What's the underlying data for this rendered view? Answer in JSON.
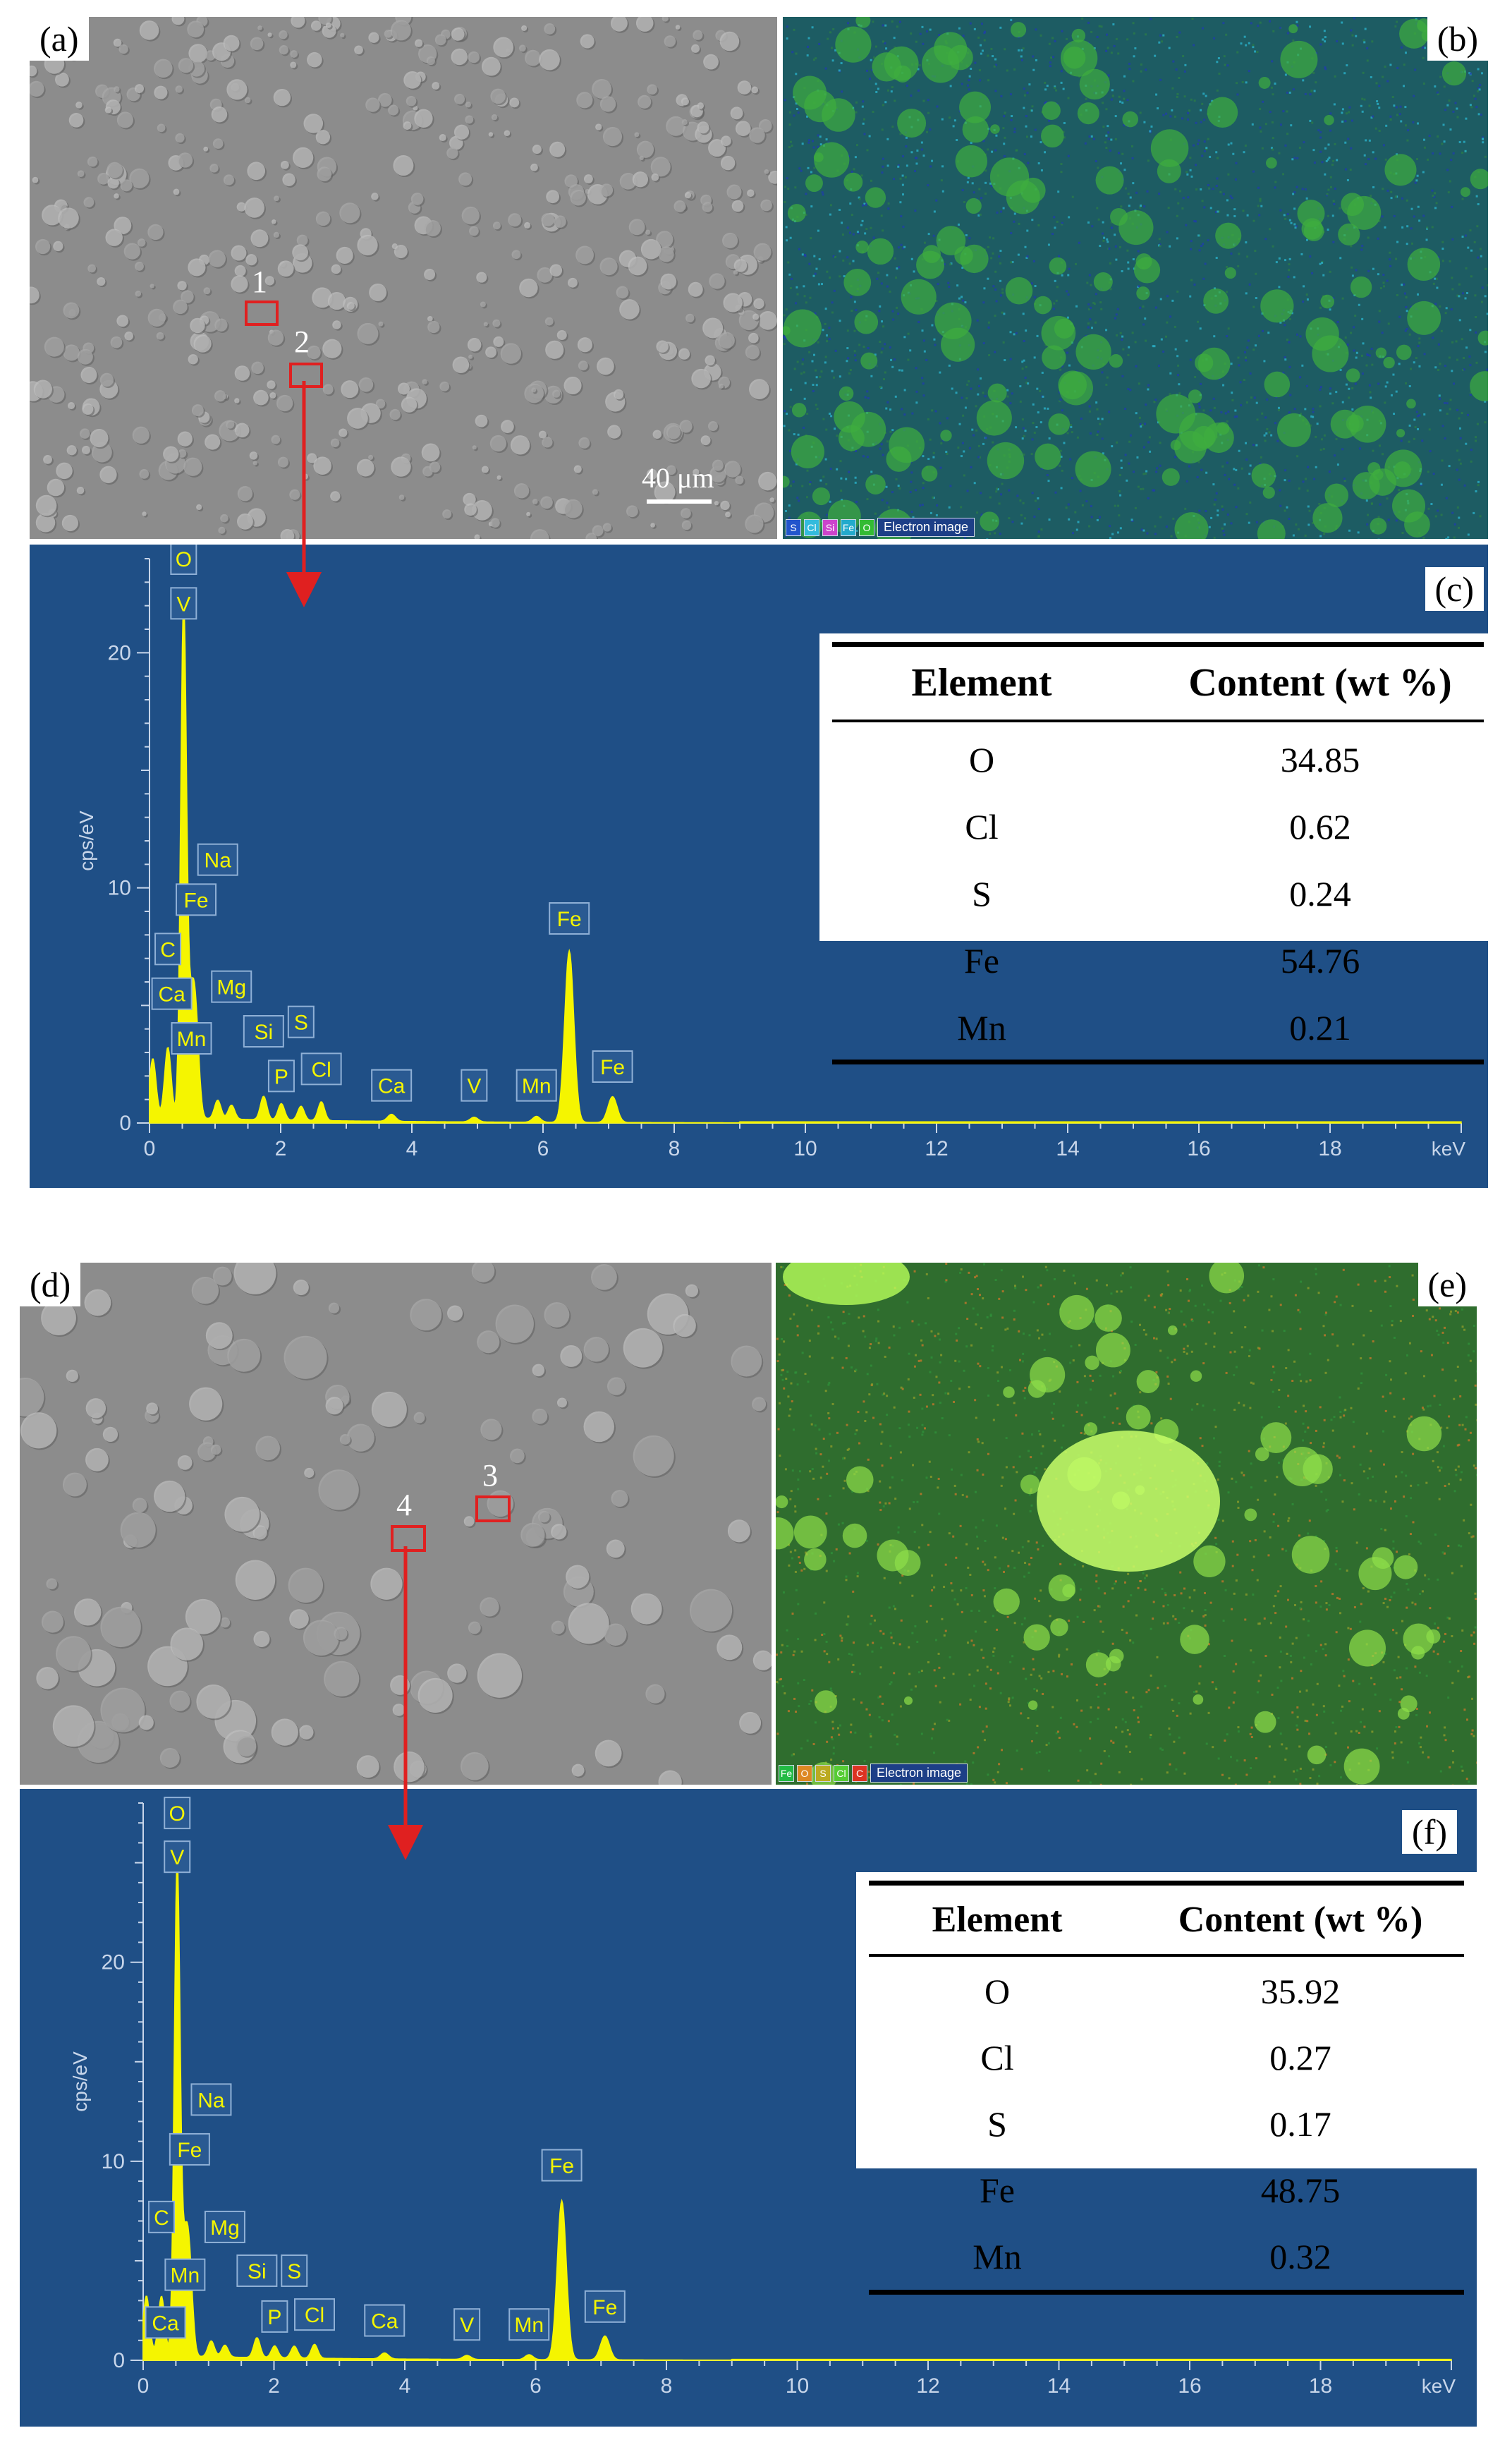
{
  "panels": {
    "a": {
      "label": "(a)",
      "scale": "40 μm",
      "points": [
        "1",
        "2"
      ]
    },
    "b": {
      "label": "(b)",
      "legend": [
        "S",
        "Cl",
        "Si",
        "Fe",
        "O"
      ],
      "legend_colors": [
        "#2255cc",
        "#33bbdd",
        "#cc44cc",
        "#22aacc",
        "#33bb33"
      ],
      "electron_image": "Electron image"
    },
    "c": {
      "label": "(c)"
    },
    "d": {
      "label": "(d)",
      "points": [
        "3",
        "4"
      ]
    },
    "e": {
      "label": "(e)",
      "legend": [
        "Fe",
        "O",
        "S",
        "Cl",
        "C"
      ],
      "legend_colors": [
        "#22bb44",
        "#dd8822",
        "#bbaa22",
        "#55cc33",
        "#dd3322"
      ],
      "electron_image": "Electron image"
    },
    "f": {
      "label": "(f)"
    }
  },
  "table_c": {
    "headers": [
      "Element",
      "Content (wt %)"
    ],
    "rows": [
      [
        "O",
        "34.85"
      ],
      [
        "Cl",
        "0.62"
      ],
      [
        "S",
        "0.24"
      ],
      [
        "Fe",
        "54.76"
      ],
      [
        "Mn",
        "0.21"
      ]
    ]
  },
  "table_f": {
    "headers": [
      "Element",
      "Content (wt %)"
    ],
    "rows": [
      [
        "O",
        "35.92"
      ],
      [
        "Cl",
        "0.27"
      ],
      [
        "S",
        "0.17"
      ],
      [
        "Fe",
        "48.75"
      ],
      [
        "Mn",
        "0.32"
      ]
    ]
  },
  "chart_data": [
    {
      "type": "line",
      "panel": "c",
      "ylabel": "cps/eV",
      "xunit": "keV",
      "xlim": [
        0,
        20
      ],
      "ylim": [
        0,
        24
      ],
      "xticks": [
        "0",
        "2",
        "4",
        "6",
        "8",
        "10",
        "12",
        "14",
        "16",
        "18"
      ],
      "yticks": [
        "0",
        "10",
        "20"
      ],
      "color": "#f5f500",
      "peaks": [
        {
          "x": 0.05,
          "y": 2.5,
          "w": 0.05
        },
        {
          "x": 0.28,
          "y": 3.0,
          "w": 0.05
        },
        {
          "x": 0.52,
          "y": 22.0,
          "w": 0.045
        },
        {
          "x": 0.64,
          "y": 4.0,
          "w": 0.05
        },
        {
          "x": 0.71,
          "y": 3.5,
          "w": 0.05
        },
        {
          "x": 1.04,
          "y": 0.8,
          "w": 0.05
        },
        {
          "x": 1.25,
          "y": 0.6,
          "w": 0.05
        },
        {
          "x": 1.74,
          "y": 1.0,
          "w": 0.05
        },
        {
          "x": 2.01,
          "y": 0.7,
          "w": 0.05
        },
        {
          "x": 2.31,
          "y": 0.6,
          "w": 0.05
        },
        {
          "x": 2.62,
          "y": 0.8,
          "w": 0.05
        },
        {
          "x": 3.69,
          "y": 0.3,
          "w": 0.06
        },
        {
          "x": 4.95,
          "y": 0.2,
          "w": 0.06
        },
        {
          "x": 5.9,
          "y": 0.25,
          "w": 0.06
        },
        {
          "x": 6.4,
          "y": 7.3,
          "w": 0.07
        },
        {
          "x": 7.06,
          "y": 1.1,
          "w": 0.07
        }
      ],
      "annotations": [
        {
          "text": "O",
          "x": 0.52,
          "y": 24.0
        },
        {
          "text": "V",
          "x": 0.52,
          "y": 22.1
        },
        {
          "text": "Na",
          "x": 1.04,
          "y": 11.2
        },
        {
          "text": "Fe",
          "x": 0.71,
          "y": 9.5
        },
        {
          "text": "C",
          "x": 0.28,
          "y": 7.4
        },
        {
          "text": "Mg",
          "x": 1.25,
          "y": 5.8
        },
        {
          "text": "Ca",
          "x": 0.34,
          "y": 5.5
        },
        {
          "text": "Si",
          "x": 1.74,
          "y": 3.9
        },
        {
          "text": "S",
          "x": 2.31,
          "y": 4.3
        },
        {
          "text": "Mn",
          "x": 0.64,
          "y": 3.6
        },
        {
          "text": "P",
          "x": 2.01,
          "y": 2.0
        },
        {
          "text": "Cl",
          "x": 2.62,
          "y": 2.3
        },
        {
          "text": "Ca",
          "x": 3.69,
          "y": 1.6
        },
        {
          "text": "V",
          "x": 4.95,
          "y": 1.6
        },
        {
          "text": "Mn",
          "x": 5.9,
          "y": 1.6
        },
        {
          "text": "Fe",
          "x": 6.4,
          "y": 8.7
        },
        {
          "text": "Fe",
          "x": 7.06,
          "y": 2.4
        }
      ]
    },
    {
      "type": "line",
      "panel": "f",
      "ylabel": "cps/eV",
      "xunit": "keV",
      "xlim": [
        0,
        20
      ],
      "ylim": [
        0,
        28
      ],
      "xticks": [
        "0",
        "2",
        "4",
        "6",
        "8",
        "10",
        "12",
        "14",
        "16",
        "18"
      ],
      "yticks": [
        "0",
        "10",
        "20"
      ],
      "color": "#f5f500",
      "peaks": [
        {
          "x": 0.05,
          "y": 3.0,
          "w": 0.05
        },
        {
          "x": 0.28,
          "y": 3.0,
          "w": 0.05
        },
        {
          "x": 0.52,
          "y": 25.0,
          "w": 0.045
        },
        {
          "x": 0.64,
          "y": 4.5,
          "w": 0.05
        },
        {
          "x": 0.71,
          "y": 4.0,
          "w": 0.05
        },
        {
          "x": 1.04,
          "y": 0.8,
          "w": 0.05
        },
        {
          "x": 1.25,
          "y": 0.6,
          "w": 0.05
        },
        {
          "x": 1.74,
          "y": 1.0,
          "w": 0.05
        },
        {
          "x": 2.01,
          "y": 0.6,
          "w": 0.05
        },
        {
          "x": 2.31,
          "y": 0.6,
          "w": 0.05
        },
        {
          "x": 2.62,
          "y": 0.7,
          "w": 0.05
        },
        {
          "x": 3.69,
          "y": 0.3,
          "w": 0.06
        },
        {
          "x": 4.95,
          "y": 0.2,
          "w": 0.06
        },
        {
          "x": 5.9,
          "y": 0.25,
          "w": 0.06
        },
        {
          "x": 6.4,
          "y": 8.0,
          "w": 0.07
        },
        {
          "x": 7.06,
          "y": 1.2,
          "w": 0.07
        }
      ],
      "annotations": [
        {
          "text": "O",
          "x": 0.52,
          "y": 27.5
        },
        {
          "text": "V",
          "x": 0.52,
          "y": 25.3
        },
        {
          "text": "Na",
          "x": 1.04,
          "y": 13.1
        },
        {
          "text": "Fe",
          "x": 0.71,
          "y": 10.6
        },
        {
          "text": "C",
          "x": 0.28,
          "y": 7.2
        },
        {
          "text": "Mg",
          "x": 1.25,
          "y": 6.7
        },
        {
          "text": "Si",
          "x": 1.74,
          "y": 4.5
        },
        {
          "text": "S",
          "x": 2.31,
          "y": 4.5
        },
        {
          "text": "Mn",
          "x": 0.64,
          "y": 4.3
        },
        {
          "text": "Ca",
          "x": 0.34,
          "y": 1.9
        },
        {
          "text": "P",
          "x": 2.01,
          "y": 2.2
        },
        {
          "text": "Cl",
          "x": 2.62,
          "y": 2.3
        },
        {
          "text": "Ca",
          "x": 3.69,
          "y": 2.0
        },
        {
          "text": "V",
          "x": 4.95,
          "y": 1.8
        },
        {
          "text": "Mn",
          "x": 5.9,
          "y": 1.8
        },
        {
          "text": "Fe",
          "x": 6.4,
          "y": 9.8
        },
        {
          "text": "Fe",
          "x": 7.06,
          "y": 2.7
        }
      ]
    }
  ]
}
